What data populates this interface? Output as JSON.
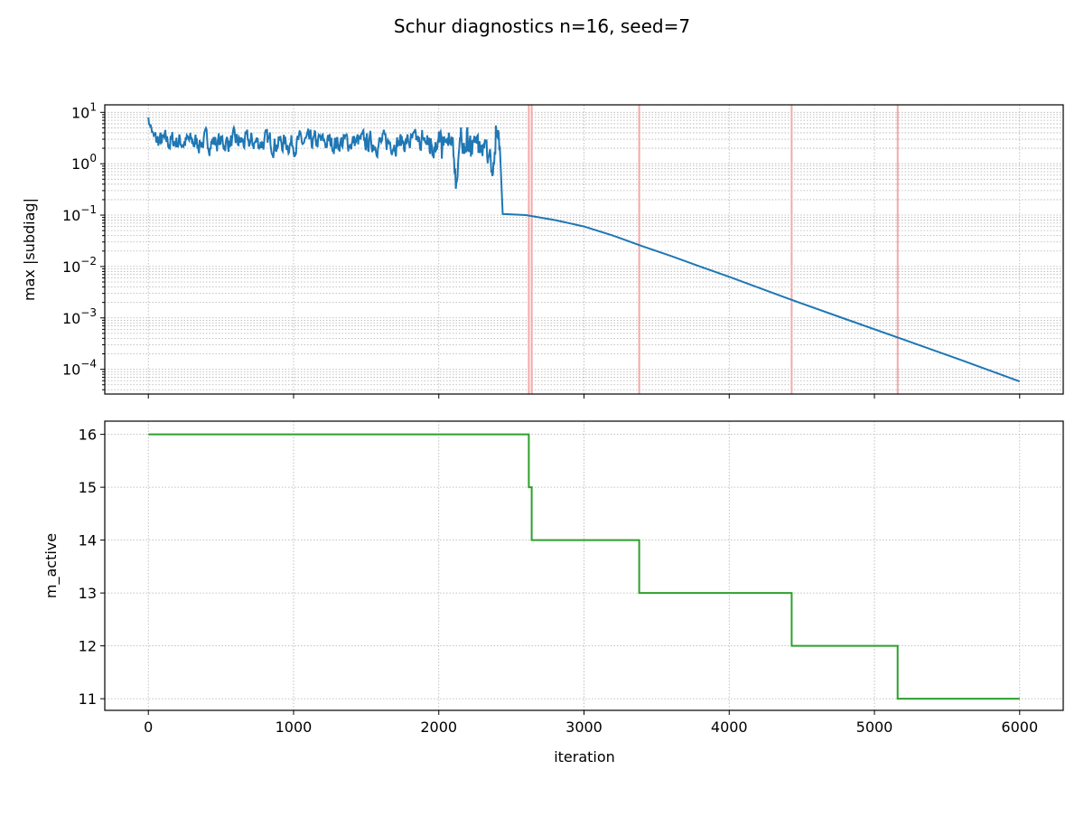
{
  "figure": {
    "title": "Schur diagnostics n=16, seed=7"
  },
  "chart_data": [
    {
      "type": "line",
      "panel": "top",
      "title": "",
      "xlabel": "",
      "ylabel": "max |subdiag|",
      "yscale": "log",
      "xlim": [
        -300,
        6300
      ],
      "ylim": [
        3.3e-05,
        14
      ],
      "xticks": [
        0,
        1000,
        2000,
        3000,
        4000,
        5000,
        6000
      ],
      "xtick_labels_visible": false,
      "yticks": [
        {
          "value": 10,
          "base": "10",
          "exp": "1"
        },
        {
          "value": 1,
          "base": "10",
          "exp": "0"
        },
        {
          "value": 0.1,
          "base": "10",
          "exp": "−1"
        },
        {
          "value": 0.01,
          "base": "10",
          "exp": "−2"
        },
        {
          "value": 0.001,
          "base": "10",
          "exp": "−3"
        },
        {
          "value": 0.0001,
          "base": "10",
          "exp": "−4"
        }
      ],
      "grid": "major and minor, dotted",
      "line_color": "#1f77b4",
      "noisy_phase": {
        "x_start": 0,
        "x_end": 2420,
        "start_value": 8.0,
        "typical_range": [
          1.5,
          5.0
        ],
        "dips": [
          {
            "x": 2120,
            "value": 0.35
          },
          {
            "x": 2370,
            "value": 0.5
          }
        ]
      },
      "series": [
        {
          "x": [
            0,
            100,
            200,
            300,
            400,
            500,
            600,
            700,
            800,
            900,
            1000,
            1100,
            1200,
            1300,
            1400,
            1500,
            1600,
            1700,
            1800,
            1900,
            2000,
            2100,
            2120,
            2200,
            2300,
            2370,
            2400,
            2430,
            2440,
            2600,
            2800,
            3000,
            3200,
            3400,
            3600,
            3800,
            4000,
            4400,
            4800,
            5200,
            5600,
            6000
          ],
          "y": [
            8.0,
            3.0,
            4.0,
            2.5,
            3.5,
            2.8,
            3.0,
            2.5,
            3.2,
            2.4,
            2.2,
            2.3,
            2.8,
            2.5,
            3.0,
            2.6,
            2.3,
            3.0,
            2.8,
            2.5,
            2.4,
            1.8,
            0.35,
            2.5,
            1.8,
            0.5,
            3.0,
            2.0,
            0.105,
            0.1,
            0.08,
            0.06,
            0.04,
            0.025,
            0.016,
            0.01,
            0.0063,
            0.0024,
            0.00095,
            0.00038,
            0.00015,
            5.8e-05
          ]
        }
      ],
      "vertical_lines": {
        "x": [
          2620,
          2640,
          3380,
          4430,
          5160
        ],
        "color": "#f4a9a9"
      }
    },
    {
      "type": "line",
      "panel": "bottom",
      "step": true,
      "title": "",
      "xlabel": "iteration",
      "ylabel": "m_active",
      "xlim": [
        -300,
        6300
      ],
      "ylim": [
        10.78,
        16.25
      ],
      "xticks": [
        0,
        1000,
        2000,
        3000,
        4000,
        5000,
        6000
      ],
      "yticks": [
        11,
        12,
        13,
        14,
        15,
        16
      ],
      "grid": "major, dotted",
      "line_color": "#2ca02c",
      "series": [
        {
          "x": [
            0,
            2620,
            2640,
            3380,
            4430,
            5160,
            6000
          ],
          "y": [
            16,
            15,
            14,
            13,
            12,
            11,
            11
          ]
        }
      ]
    }
  ]
}
